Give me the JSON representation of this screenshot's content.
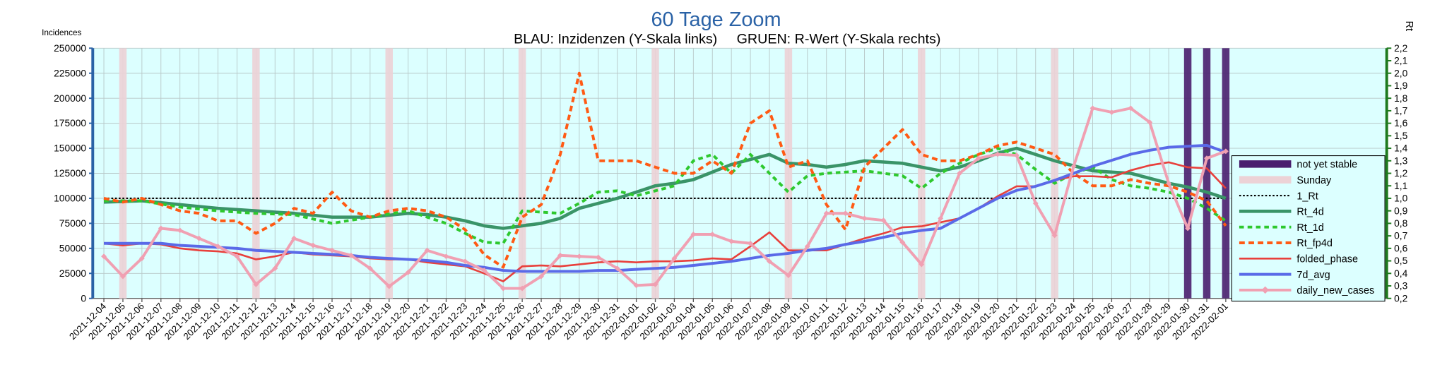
{
  "chart_data": {
    "type": "line",
    "title": "60 Tage Zoom",
    "subtitle": "BLAU: Inzidenzen (Y-Skala links)     GRUEN: R-Wert (Y-Skala rechts)",
    "y_label": "Incidences",
    "y2_label": "Rt",
    "categories": [
      "2021-12-04",
      "2021-12-05",
      "2021-12-06",
      "2021-12-07",
      "2021-12-08",
      "2021-12-09",
      "2021-12-10",
      "2021-12-11",
      "2021-12-12",
      "2021-12-13",
      "2021-12-14",
      "2021-12-15",
      "2021-12-16",
      "2021-12-17",
      "2021-12-18",
      "2021-12-19",
      "2021-12-20",
      "2021-12-21",
      "2021-12-22",
      "2021-12-23",
      "2021-12-24",
      "2021-12-25",
      "2021-12-26",
      "2021-12-27",
      "2021-12-28",
      "2021-12-29",
      "2021-12-30",
      "2021-12-31",
      "2022-01-01",
      "2022-01-02",
      "2022-01-03",
      "2022-01-04",
      "2022-01-05",
      "2022-01-06",
      "2022-01-07",
      "2022-01-08",
      "2022-01-09",
      "2022-01-10",
      "2022-01-11",
      "2022-01-12",
      "2022-01-13",
      "2022-01-14",
      "2022-01-15",
      "2022-01-16",
      "2022-01-17",
      "2022-01-18",
      "2022-01-19",
      "2022-01-20",
      "2022-01-21",
      "2022-01-22",
      "2022-01-23",
      "2022-01-24",
      "2022-01-25",
      "2022-01-26",
      "2022-01-27",
      "2022-01-28",
      "2022-01-29",
      "2022-01-30",
      "2022-01-31",
      "2022-02-01"
    ],
    "ylim": [
      0,
      250000
    ],
    "yticks": [
      0,
      25000,
      50000,
      75000,
      100000,
      125000,
      150000,
      175000,
      200000,
      225000,
      250000
    ],
    "y2lim": [
      0.2,
      2.2
    ],
    "y2ticks": [
      {
        "value": 0.2,
        "label": "0,2"
      },
      {
        "value": 0.3,
        "label": "0,3"
      },
      {
        "value": 0.4,
        "label": "0,4"
      },
      {
        "value": 0.5,
        "label": "0,5"
      },
      {
        "value": 0.6,
        "label": "0,6"
      },
      {
        "value": 0.7,
        "label": "0,7"
      },
      {
        "value": 0.8,
        "label": "0,8"
      },
      {
        "value": 0.9,
        "label": "0,9"
      },
      {
        "value": 1.0,
        "label": "1,0"
      },
      {
        "value": 1.1,
        "label": "1,1"
      },
      {
        "value": 1.2,
        "label": "1,2"
      },
      {
        "value": 1.3,
        "label": "1,3"
      },
      {
        "value": 1.4,
        "label": "1,4"
      },
      {
        "value": 1.5,
        "label": "1,5"
      },
      {
        "value": 1.6,
        "label": "1,6"
      },
      {
        "value": 1.7,
        "label": "1,7"
      },
      {
        "value": 1.8,
        "label": "1,8"
      },
      {
        "value": 1.9,
        "label": "1,9"
      },
      {
        "value": 2.0,
        "label": "2,0"
      },
      {
        "value": 2.1,
        "label": "2,1"
      },
      {
        "value": 2.2,
        "label": "2,2"
      }
    ],
    "grid": true,
    "legend": "right",
    "series": [
      {
        "name": "not yet stable",
        "type": "bar",
        "color": "#4a1e6e",
        "values": [
          null,
          null,
          null,
          null,
          null,
          null,
          null,
          null,
          null,
          null,
          null,
          null,
          null,
          null,
          null,
          null,
          null,
          null,
          null,
          null,
          null,
          null,
          null,
          null,
          null,
          null,
          null,
          null,
          null,
          null,
          null,
          null,
          null,
          null,
          null,
          null,
          null,
          null,
          null,
          null,
          null,
          null,
          null,
          null,
          null,
          null,
          null,
          null,
          null,
          null,
          null,
          null,
          null,
          null,
          null,
          null,
          null,
          250000,
          250000,
          250000
        ]
      },
      {
        "name": "Sunday",
        "type": "bar",
        "color": "#ecd2d6",
        "values": [
          null,
          250000,
          null,
          null,
          null,
          null,
          null,
          null,
          250000,
          null,
          null,
          null,
          null,
          null,
          null,
          250000,
          null,
          null,
          null,
          null,
          null,
          null,
          250000,
          null,
          null,
          null,
          null,
          null,
          null,
          250000,
          null,
          null,
          null,
          null,
          null,
          null,
          250000,
          null,
          null,
          null,
          null,
          null,
          null,
          250000,
          null,
          null,
          null,
          null,
          null,
          null,
          250000,
          null,
          null,
          null,
          null,
          null,
          null,
          null,
          null,
          null
        ]
      },
      {
        "name": "1_Rt",
        "type": "line",
        "axis": "y2",
        "color": "#000000",
        "dash": "2,2",
        "values": [
          1,
          1,
          1,
          1,
          1,
          1,
          1,
          1,
          1,
          1,
          1,
          1,
          1,
          1,
          1,
          1,
          1,
          1,
          1,
          1,
          1,
          1,
          1,
          1,
          1,
          1,
          1,
          1,
          1,
          1,
          1,
          1,
          1,
          1,
          1,
          1,
          1,
          1,
          1,
          1,
          1,
          1,
          1,
          1,
          1,
          1,
          1,
          1,
          1,
          1,
          1,
          1,
          1,
          1,
          1,
          1,
          1,
          1,
          1,
          1
        ]
      },
      {
        "name": "Rt_4d",
        "type": "line",
        "axis": "y2",
        "color": "#3a9468",
        "width": 3.5,
        "values": [
          0.97,
          0.975,
          0.98,
          0.965,
          0.95,
          0.935,
          0.92,
          0.91,
          0.9,
          0.89,
          0.88,
          0.865,
          0.85,
          0.85,
          0.85,
          0.865,
          0.88,
          0.87,
          0.85,
          0.82,
          0.78,
          0.76,
          0.78,
          0.8,
          0.84,
          0.92,
          0.96,
          1.0,
          1.05,
          1.1,
          1.12,
          1.15,
          1.21,
          1.27,
          1.31,
          1.35,
          1.28,
          1.27,
          1.25,
          1.27,
          1.3,
          1.29,
          1.28,
          1.25,
          1.22,
          1.25,
          1.3,
          1.36,
          1.4,
          1.35,
          1.3,
          1.26,
          1.22,
          1.21,
          1.2,
          1.16,
          1.12,
          1.09,
          1.05,
          1.0
        ]
      },
      {
        "name": "Rt_1d",
        "type": "line",
        "axis": "y2",
        "color": "#2ec82e",
        "dash": "5,4",
        "width": 3,
        "values": [
          0.98,
          0.98,
          0.98,
          0.955,
          0.93,
          0.915,
          0.9,
          0.89,
          0.88,
          0.875,
          0.87,
          0.835,
          0.8,
          0.825,
          0.85,
          0.875,
          0.9,
          0.85,
          0.8,
          0.72,
          0.65,
          0.64,
          0.9,
          0.89,
          0.88,
          0.96,
          1.05,
          1.06,
          1.02,
          1.06,
          1.1,
          1.3,
          1.35,
          1.2,
          1.35,
          1.2,
          1.05,
          1.18,
          1.2,
          1.21,
          1.22,
          1.2,
          1.18,
          1.08,
          1.2,
          1.28,
          1.35,
          1.4,
          1.35,
          1.23,
          1.12,
          1.2,
          1.25,
          1.15,
          1.1,
          1.08,
          1.05,
          1.0,
          0.92,
          0.82
        ]
      },
      {
        "name": "Rt_fp4d",
        "type": "line",
        "axis": "y2",
        "color": "#ff5a14",
        "dash": "6,4",
        "width": 3,
        "values": [
          1.0,
          0.97,
          1.0,
          0.95,
          0.9,
          0.88,
          0.82,
          0.82,
          0.72,
          0.8,
          0.92,
          0.88,
          1.05,
          0.9,
          0.85,
          0.9,
          0.92,
          0.9,
          0.85,
          0.75,
          0.55,
          0.45,
          0.85,
          0.95,
          1.35,
          2.0,
          1.3,
          1.3,
          1.3,
          1.25,
          1.2,
          1.2,
          1.3,
          1.2,
          1.6,
          1.7,
          1.25,
          1.3,
          0.95,
          0.75,
          1.25,
          1.4,
          1.55,
          1.35,
          1.3,
          1.3,
          1.35,
          1.42,
          1.45,
          1.4,
          1.35,
          1.2,
          1.1,
          1.1,
          1.15,
          1.12,
          1.1,
          1.05,
          0.98,
          0.78
        ]
      },
      {
        "name": "folded_phase",
        "type": "line",
        "color": "#e8403c",
        "width": 2,
        "values": [
          55000,
          53000,
          55000,
          54000,
          50000,
          48000,
          47000,
          45000,
          39000,
          42000,
          46000,
          44000,
          43000,
          42000,
          40000,
          39000,
          39000,
          36000,
          34000,
          32000,
          25000,
          17000,
          32000,
          33000,
          32000,
          34000,
          36000,
          37000,
          36000,
          37000,
          37000,
          38000,
          40000,
          39000,
          52000,
          66000,
          48000,
          48000,
          48000,
          54000,
          60000,
          65000,
          71000,
          72000,
          76000,
          80000,
          90000,
          102000,
          112000,
          112000,
          118000,
          122000,
          122000,
          121000,
          128000,
          133000,
          136000,
          131000,
          130000,
          110000
        ]
      },
      {
        "name": "7d_avg",
        "type": "line",
        "color": "#5a6ae8",
        "width": 3,
        "values": [
          55000,
          55000,
          55000,
          55000,
          53000,
          52000,
          51000,
          50000,
          48000,
          47000,
          46000,
          45000,
          44000,
          43000,
          41000,
          40000,
          39000,
          38000,
          36000,
          33000,
          31000,
          28000,
          27000,
          27000,
          27000,
          27000,
          28000,
          28000,
          29000,
          30000,
          31000,
          33000,
          35000,
          37000,
          40000,
          43000,
          45000,
          48000,
          50000,
          54000,
          57000,
          61000,
          65000,
          68000,
          70000,
          80000,
          90000,
          100000,
          108000,
          112000,
          118000,
          125000,
          132000,
          138000,
          144000,
          148000,
          151000,
          152000,
          153000,
          146000
        ]
      },
      {
        "name": "daily_new_cases",
        "type": "line",
        "color": "#f0a0b2",
        "width": 3,
        "marker": "diamond",
        "values": [
          42000,
          22000,
          40000,
          70000,
          68000,
          60000,
          52000,
          42000,
          14000,
          30000,
          60000,
          53000,
          48000,
          43000,
          30000,
          12000,
          26000,
          48000,
          42000,
          37000,
          28000,
          10000,
          10000,
          22000,
          43000,
          42000,
          41000,
          30000,
          13000,
          14000,
          40000,
          64000,
          64000,
          57000,
          55000,
          37000,
          23000,
          52000,
          85000,
          85000,
          80000,
          78000,
          56000,
          34000,
          80000,
          125000,
          140000,
          144000,
          143000,
          95000,
          63000,
          132000,
          190000,
          186000,
          190000,
          176000,
          115000,
          70000,
          140000,
          147000
        ]
      }
    ]
  }
}
